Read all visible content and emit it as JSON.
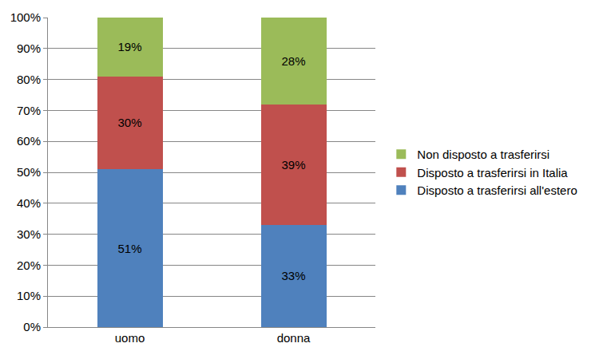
{
  "chart_data": {
    "type": "bar",
    "stacked": true,
    "categories": [
      "uomo",
      "donna"
    ],
    "series": [
      {
        "name": "Disposto a trasferirsi all'estero",
        "color": "#4f81bd",
        "values": [
          51,
          33
        ],
        "value_labels": [
          "51%",
          "33%"
        ]
      },
      {
        "name": "Disposto a trasferirsi in Italia",
        "color": "#c0504d",
        "values": [
          30,
          39
        ],
        "value_labels": [
          "30%",
          "39%"
        ]
      },
      {
        "name": "Non disposto a trasferirsi",
        "color": "#9bbb59",
        "values": [
          19,
          28
        ],
        "value_labels": [
          "19%",
          "28%"
        ]
      }
    ],
    "ylim": [
      0,
      100
    ],
    "yticks": [
      {
        "value": 0,
        "label": "0%"
      },
      {
        "value": 10,
        "label": "10%"
      },
      {
        "value": 20,
        "label": "20%"
      },
      {
        "value": 30,
        "label": "30%"
      },
      {
        "value": 40,
        "label": "40%"
      },
      {
        "value": 50,
        "label": "50%"
      },
      {
        "value": 60,
        "label": "60%"
      },
      {
        "value": 70,
        "label": "70%"
      },
      {
        "value": 80,
        "label": "80%"
      },
      {
        "value": 90,
        "label": "90%"
      },
      {
        "value": 100,
        "label": "100%"
      }
    ],
    "grid": true,
    "data_labels": true,
    "legend": "right"
  }
}
